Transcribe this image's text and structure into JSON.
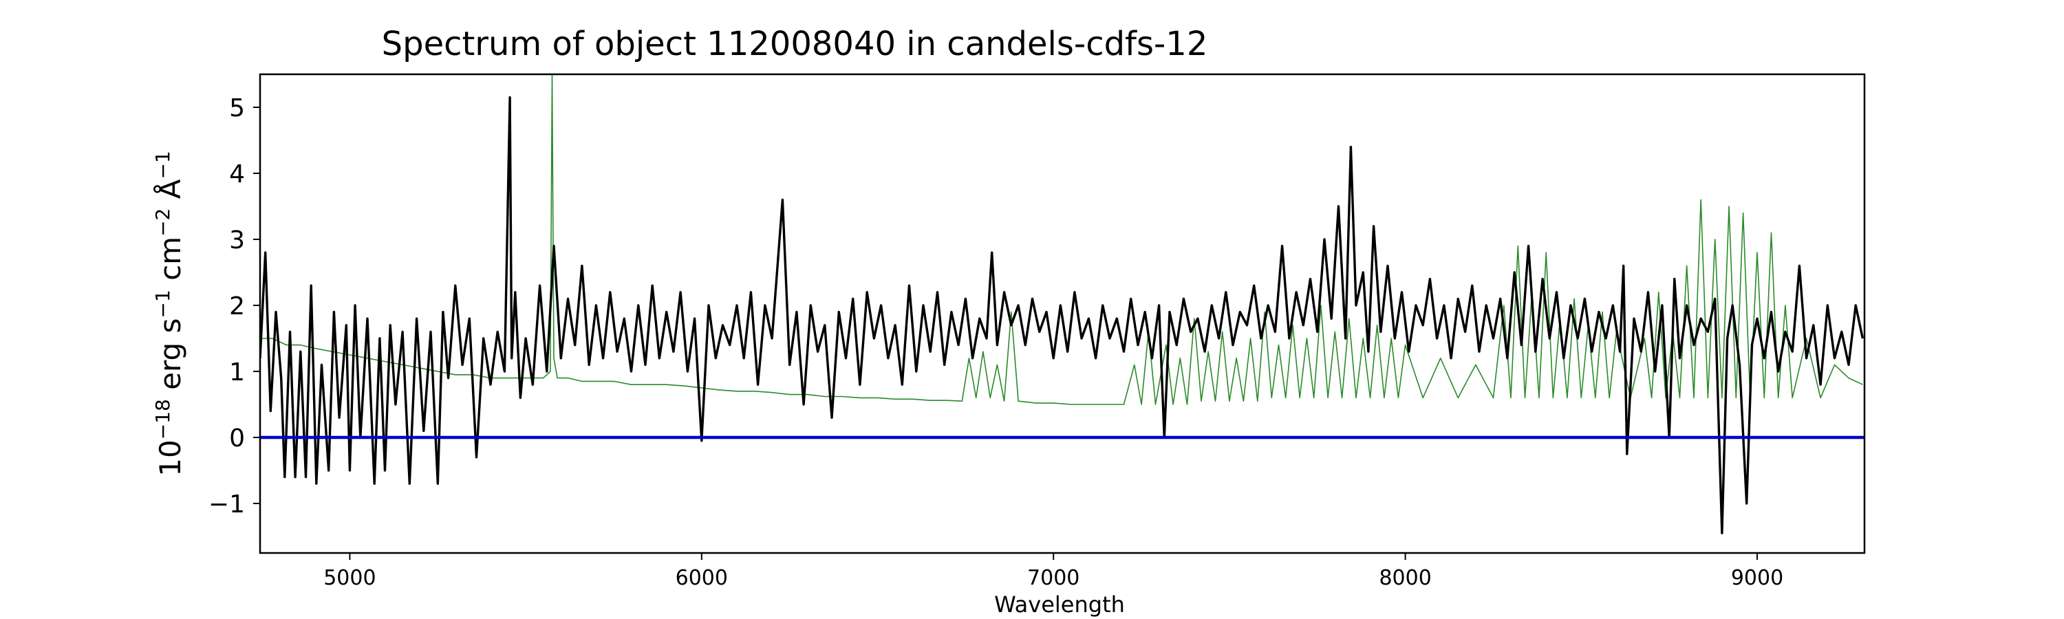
{
  "chart_data": {
    "type": "line",
    "title": "Spectrum of object 112008040 in candels-cdfs-12",
    "xlabel": "Wavelength",
    "ylabel": {
      "base": "10",
      "exp": "−18",
      "units": [
        {
          "text": " erg s",
          "sup": "−1"
        },
        {
          "text": " cm",
          "sup": "−2"
        },
        {
          "text": " Å",
          "sup": "−1"
        }
      ]
    },
    "xlim": [
      4745,
      9305
    ],
    "ylim": [
      -1.75,
      5.5
    ],
    "xticks": [
      5000,
      6000,
      7000,
      8000,
      9000
    ],
    "yticks": [
      -1,
      0,
      1,
      2,
      3,
      4,
      5
    ],
    "xtick_labels": [
      "5000",
      "6000",
      "7000",
      "8000",
      "9000"
    ],
    "ytick_labels": [
      "−1",
      "0",
      "1",
      "2",
      "3",
      "4",
      "5"
    ],
    "colors": {
      "flux": "#000000",
      "error": "#2a8a2a",
      "zero": "#0000cc"
    },
    "series": [
      {
        "role": "flux",
        "x": [
          4745,
          4760,
          4775,
          4790,
          4805,
          4815,
          4830,
          4845,
          4860,
          4875,
          4890,
          4905,
          4920,
          4940,
          4955,
          4970,
          4990,
          5000,
          5015,
          5030,
          5050,
          5070,
          5085,
          5100,
          5115,
          5130,
          5150,
          5170,
          5190,
          5210,
          5230,
          5250,
          5265,
          5280,
          5300,
          5320,
          5340,
          5360,
          5380,
          5400,
          5420,
          5440,
          5455,
          5460,
          5470,
          5485,
          5500,
          5520,
          5540,
          5560,
          5580,
          5600,
          5620,
          5640,
          5660,
          5680,
          5700,
          5720,
          5740,
          5760,
          5780,
          5800,
          5820,
          5840,
          5860,
          5880,
          5900,
          5920,
          5940,
          5960,
          5980,
          6000,
          6020,
          6040,
          6060,
          6080,
          6100,
          6120,
          6140,
          6160,
          6180,
          6200,
          6230,
          6250,
          6270,
          6290,
          6310,
          6330,
          6350,
          6370,
          6390,
          6410,
          6430,
          6450,
          6470,
          6490,
          6510,
          6530,
          6550,
          6570,
          6590,
          6610,
          6630,
          6650,
          6670,
          6690,
          6710,
          6730,
          6750,
          6770,
          6790,
          6810,
          6825,
          6840,
          6860,
          6880,
          6900,
          6920,
          6940,
          6960,
          6980,
          7000,
          7020,
          7040,
          7060,
          7080,
          7100,
          7120,
          7140,
          7160,
          7180,
          7200,
          7220,
          7240,
          7260,
          7280,
          7300,
          7315,
          7330,
          7350,
          7370,
          7390,
          7410,
          7430,
          7450,
          7470,
          7490,
          7510,
          7530,
          7550,
          7570,
          7590,
          7610,
          7630,
          7650,
          7670,
          7690,
          7710,
          7730,
          7750,
          7770,
          7790,
          7810,
          7830,
          7845,
          7860,
          7880,
          7895,
          7910,
          7930,
          7950,
          7970,
          7990,
          8010,
          8030,
          8050,
          8070,
          8090,
          8110,
          8130,
          8150,
          8170,
          8190,
          8210,
          8230,
          8250,
          8270,
          8290,
          8310,
          8330,
          8350,
          8370,
          8390,
          8410,
          8430,
          8450,
          8470,
          8490,
          8510,
          8530,
          8550,
          8570,
          8590,
          8610,
          8620,
          8630,
          8650,
          8670,
          8690,
          8710,
          8730,
          8750,
          8765,
          8780,
          8800,
          8820,
          8840,
          8860,
          8880,
          8900,
          8915,
          8930,
          8950,
          8970,
          8985,
          9000,
          9020,
          9040,
          9060,
          9080,
          9100,
          9120,
          9140,
          9160,
          9180,
          9200,
          9220,
          9240,
          9260,
          9280,
          9300
        ],
        "y": [
          1.2,
          2.8,
          0.4,
          1.9,
          0.9,
          -0.6,
          1.6,
          -0.6,
          1.3,
          -0.6,
          2.3,
          -0.7,
          1.1,
          -0.5,
          1.9,
          0.3,
          1.7,
          -0.5,
          2.0,
          0.0,
          1.8,
          -0.7,
          1.5,
          -0.5,
          1.7,
          0.5,
          1.6,
          -0.7,
          1.8,
          0.1,
          1.6,
          -0.7,
          1.9,
          0.9,
          2.3,
          1.1,
          1.8,
          -0.3,
          1.5,
          0.8,
          1.6,
          1.0,
          5.15,
          1.2,
          2.2,
          0.6,
          1.5,
          0.8,
          2.3,
          1.0,
          2.9,
          1.2,
          2.1,
          1.4,
          2.6,
          1.1,
          2.0,
          1.2,
          2.2,
          1.3,
          1.8,
          1.0,
          2.0,
          1.1,
          2.3,
          1.2,
          1.9,
          1.3,
          2.2,
          1.0,
          1.8,
          -0.05,
          2.0,
          1.2,
          1.7,
          1.4,
          2.0,
          1.2,
          2.2,
          0.8,
          2.0,
          1.5,
          3.6,
          1.1,
          1.9,
          0.5,
          2.0,
          1.3,
          1.7,
          0.3,
          1.9,
          1.2,
          2.1,
          0.8,
          2.2,
          1.5,
          2.0,
          1.2,
          1.7,
          0.8,
          2.3,
          1.0,
          2.0,
          1.3,
          2.2,
          1.1,
          1.9,
          1.4,
          2.1,
          1.2,
          1.8,
          1.5,
          2.8,
          1.4,
          2.2,
          1.7,
          2.0,
          1.4,
          2.1,
          1.6,
          1.9,
          1.2,
          2.0,
          1.3,
          2.2,
          1.5,
          1.8,
          1.2,
          2.0,
          1.5,
          1.8,
          1.3,
          2.1,
          1.4,
          1.9,
          1.2,
          2.0,
          0.0,
          1.9,
          1.4,
          2.1,
          1.6,
          1.8,
          1.3,
          2.0,
          1.5,
          2.2,
          1.4,
          1.9,
          1.7,
          2.3,
          1.5,
          2.0,
          1.6,
          2.9,
          1.5,
          2.2,
          1.7,
          2.4,
          1.6,
          3.0,
          1.8,
          3.5,
          1.5,
          4.4,
          2.0,
          2.5,
          1.3,
          3.2,
          1.6,
          2.6,
          1.5,
          2.2,
          1.3,
          2.0,
          1.7,
          2.4,
          1.5,
          2.0,
          1.2,
          2.1,
          1.6,
          2.3,
          1.3,
          2.0,
          1.5,
          2.1,
          1.2,
          2.5,
          1.4,
          2.9,
          1.3,
          2.4,
          1.5,
          2.2,
          1.2,
          2.0,
          1.5,
          2.1,
          1.3,
          1.9,
          1.5,
          2.0,
          1.3,
          2.6,
          -0.25,
          1.8,
          1.3,
          2.2,
          1.0,
          2.0,
          0.0,
          2.4,
          1.2,
          2.0,
          1.4,
          1.8,
          1.6,
          2.1,
          -1.45,
          1.5,
          2.0,
          1.1,
          -1.0,
          1.4,
          1.8,
          1.2,
          1.9,
          1.0,
          1.6,
          1.3,
          2.6,
          1.2,
          1.7,
          0.8,
          2.0,
          1.2,
          1.6,
          1.1,
          2.0,
          1.5
        ]
      },
      {
        "role": "error",
        "x": [
          4745,
          4780,
          4820,
          4860,
          4900,
          4950,
          5000,
          5050,
          5100,
          5150,
          5200,
          5250,
          5300,
          5350,
          5400,
          5450,
          5500,
          5550,
          5570,
          5575,
          5580,
          5590,
          5620,
          5660,
          5700,
          5750,
          5800,
          5850,
          5900,
          5950,
          6000,
          6050,
          6100,
          6150,
          6200,
          6250,
          6300,
          6350,
          6400,
          6450,
          6500,
          6550,
          6600,
          6650,
          6700,
          6740,
          6760,
          6780,
          6800,
          6820,
          6840,
          6860,
          6880,
          6900,
          6950,
          7000,
          7050,
          7100,
          7150,
          7200,
          7230,
          7250,
          7270,
          7290,
          7320,
          7340,
          7360,
          7380,
          7400,
          7420,
          7440,
          7460,
          7480,
          7500,
          7520,
          7540,
          7560,
          7580,
          7600,
          7620,
          7640,
          7660,
          7680,
          7700,
          7720,
          7740,
          7760,
          7780,
          7800,
          7820,
          7840,
          7860,
          7880,
          7900,
          7920,
          7940,
          7960,
          7980,
          8000,
          8050,
          8100,
          8150,
          8200,
          8250,
          8280,
          8300,
          8320,
          8340,
          8360,
          8380,
          8400,
          8420,
          8440,
          8460,
          8480,
          8500,
          8520,
          8540,
          8560,
          8580,
          8600,
          8640,
          8680,
          8700,
          8720,
          8740,
          8760,
          8780,
          8800,
          8820,
          8840,
          8860,
          8880,
          8900,
          8920,
          8940,
          8960,
          8980,
          9000,
          9020,
          9040,
          9060,
          9080,
          9100,
          9140,
          9180,
          9220,
          9260,
          9300
        ],
        "y": [
          1.5,
          1.5,
          1.4,
          1.4,
          1.35,
          1.3,
          1.25,
          1.2,
          1.15,
          1.1,
          1.05,
          1.0,
          0.95,
          0.95,
          0.9,
          0.9,
          0.9,
          0.9,
          1.0,
          5.5,
          1.2,
          0.9,
          0.9,
          0.85,
          0.85,
          0.85,
          0.8,
          0.8,
          0.8,
          0.78,
          0.75,
          0.72,
          0.7,
          0.7,
          0.68,
          0.65,
          0.65,
          0.62,
          0.62,
          0.6,
          0.6,
          0.58,
          0.58,
          0.56,
          0.56,
          0.55,
          1.2,
          0.6,
          1.3,
          0.6,
          1.1,
          0.55,
          1.9,
          0.55,
          0.52,
          0.52,
          0.5,
          0.5,
          0.5,
          0.5,
          1.1,
          0.5,
          1.6,
          0.5,
          1.4,
          0.5,
          1.2,
          0.5,
          1.8,
          0.55,
          1.3,
          0.55,
          1.6,
          0.55,
          1.2,
          0.55,
          1.5,
          0.55,
          1.9,
          0.6,
          1.4,
          0.6,
          1.7,
          0.6,
          1.5,
          0.6,
          2.0,
          0.6,
          1.6,
          0.6,
          1.8,
          0.6,
          1.5,
          0.6,
          1.7,
          0.6,
          1.5,
          0.6,
          1.4,
          0.6,
          1.2,
          0.6,
          1.1,
          0.6,
          2.0,
          0.6,
          2.9,
          0.6,
          2.2,
          0.6,
          2.8,
          0.6,
          1.8,
          0.6,
          2.1,
          0.6,
          1.7,
          0.6,
          1.9,
          0.6,
          1.6,
          0.6,
          1.5,
          0.6,
          2.2,
          0.6,
          1.6,
          0.6,
          2.6,
          0.6,
          3.6,
          0.6,
          3.0,
          0.6,
          3.5,
          0.6,
          3.4,
          0.6,
          2.8,
          0.6,
          3.1,
          0.6,
          2.0,
          0.6,
          1.5,
          0.6,
          1.1,
          0.9,
          0.8
        ]
      },
      {
        "role": "zero",
        "x": [
          4745,
          9305
        ],
        "y": [
          0,
          0
        ]
      }
    ]
  }
}
